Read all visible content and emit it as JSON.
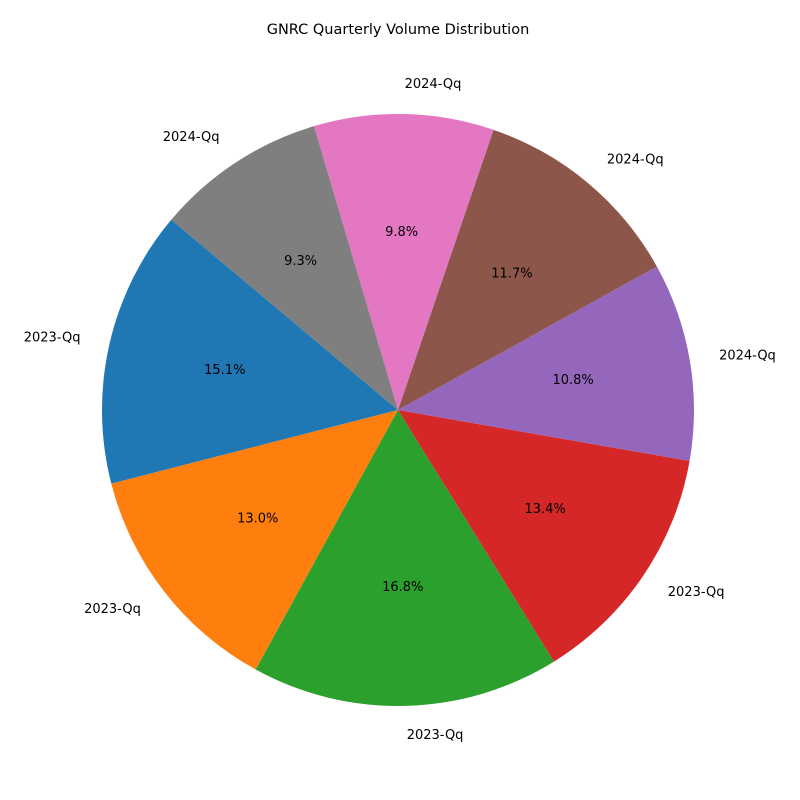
{
  "chart_data": {
    "type": "pie",
    "title": "GNRC Quarterly Volume Distribution",
    "labels": [
      "2023-Qq",
      "2023-Qq",
      "2023-Qq",
      "2023-Qq",
      "2024-Qq",
      "2024-Qq",
      "2024-Qq",
      "2024-Qq"
    ],
    "values": [
      15.1,
      13.0,
      16.8,
      13.4,
      10.8,
      11.7,
      9.8,
      9.3
    ],
    "percent_labels": [
      "15.1%",
      "13.0%",
      "16.8%",
      "13.4%",
      "10.8%",
      "11.7%",
      "9.8%",
      "9.3%"
    ],
    "colors": [
      "#1f77b4",
      "#ff7f0e",
      "#2ca02c",
      "#d62728",
      "#9467bd",
      "#8c564b",
      "#e377c2",
      "#7f7f7f"
    ],
    "start_angle_deg": 140,
    "direction": "counterclockwise",
    "legend": "none"
  }
}
